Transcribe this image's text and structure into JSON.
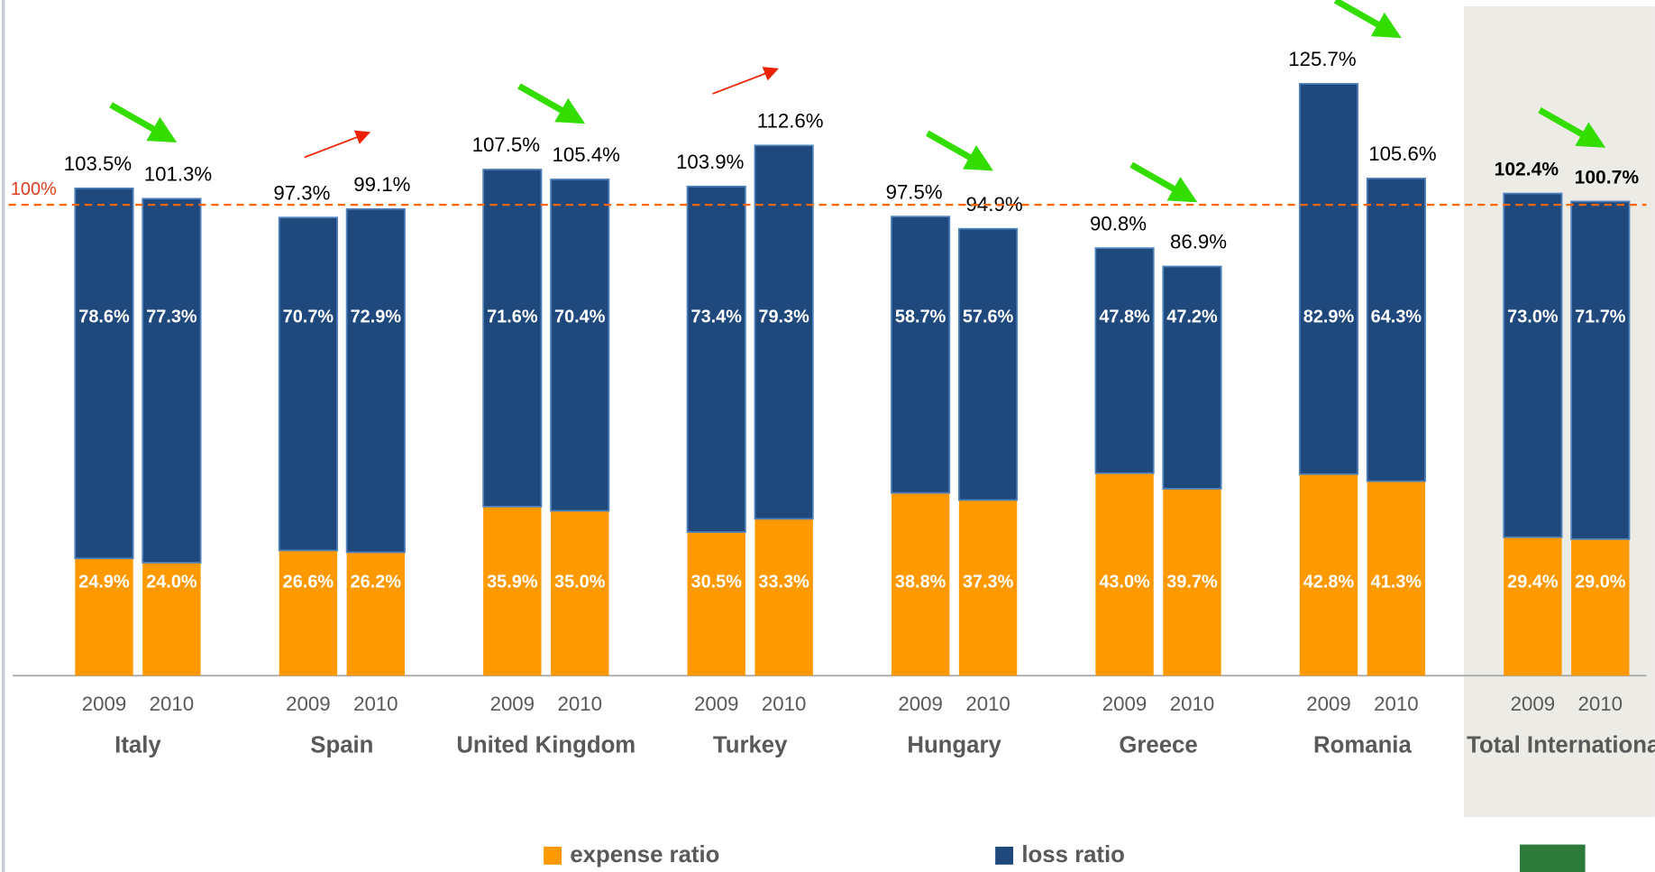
{
  "chart_data": {
    "type": "bar",
    "stacked": true,
    "groups": [
      "Italy",
      "Spain",
      "United Kingdom",
      "Turkey",
      "Hungary",
      "Greece",
      "Romania",
      "Total International"
    ],
    "categories": [
      "2009",
      "2010",
      "2009",
      "2010",
      "2009",
      "2010",
      "2009",
      "2010",
      "2009",
      "2010",
      "2009",
      "2010",
      "2009",
      "2010",
      "2009",
      "2010"
    ],
    "series": [
      {
        "name": "expense ratio",
        "color": "#ff9900",
        "values": [
          24.9,
          24.0,
          26.6,
          26.2,
          35.9,
          35.0,
          30.5,
          33.3,
          38.8,
          37.3,
          43.0,
          39.7,
          42.8,
          41.3,
          29.4,
          29.0
        ],
        "value_labels": [
          "24.9%",
          "24.0%",
          "26.6%",
          "26.2%",
          "35.9%",
          "35.0%",
          "30.5%",
          "33.3%",
          "38.8%",
          "37.3%",
          "43.0%",
          "39.7%",
          "42.8%",
          "41.3%",
          "29.4%",
          "29.0%"
        ]
      },
      {
        "name": "loss ratio",
        "color": "#1f497d",
        "values": [
          78.6,
          77.3,
          70.7,
          72.9,
          71.6,
          70.4,
          73.4,
          79.3,
          58.7,
          57.6,
          47.8,
          47.2,
          82.9,
          64.3,
          73.0,
          71.7
        ],
        "value_labels": [
          "78.6%",
          "77.3%",
          "70.7%",
          "72.9%",
          "71.6%",
          "70.4%",
          "73.4%",
          "79.3%",
          "58.7%",
          "57.6%",
          "47.8%",
          "47.2%",
          "82.9%",
          "64.3%",
          "73.0%",
          "71.7%"
        ]
      }
    ],
    "totals": [
      103.5,
      101.3,
      97.3,
      99.1,
      107.5,
      105.4,
      103.9,
      112.6,
      97.5,
      94.9,
      90.8,
      86.9,
      125.7,
      105.6,
      102.4,
      100.7
    ],
    "total_labels": [
      "103.5%",
      "101.3%",
      "97.3%",
      "99.1%",
      "107.5%",
      "105.4%",
      "103.9%",
      "112.6%",
      "97.5%",
      "94.9%",
      "90.8%",
      "86.9%",
      "125.7%",
      "105.6%",
      "102.4%",
      "100.7%"
    ],
    "reference_line": {
      "value": 100,
      "label": "100%",
      "color": "#ff6600"
    },
    "trend_arrows": [
      "down",
      "up",
      "down",
      "up",
      "down",
      "down",
      "down",
      "down"
    ],
    "ylim": [
      0,
      140
    ]
  }
}
